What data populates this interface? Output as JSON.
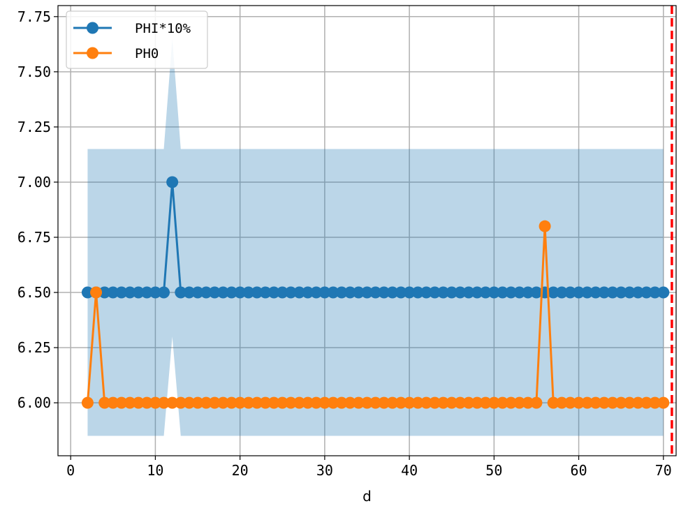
{
  "chart_data": {
    "type": "line",
    "title": "",
    "xlabel": "d",
    "ylabel": "",
    "xlim": [
      -1.5,
      71.5
    ],
    "ylim": [
      5.76,
      7.8
    ],
    "xticks": [
      0,
      10,
      20,
      30,
      40,
      50,
      60,
      70
    ],
    "yticks": [
      6.0,
      6.25,
      6.5,
      6.75,
      7.0,
      7.25,
      7.5,
      7.75
    ],
    "xtick_labels": [
      "0",
      "10",
      "20",
      "30",
      "40",
      "50",
      "60",
      "70"
    ],
    "ytick_labels": [
      "6.00",
      "6.25",
      "6.50",
      "6.75",
      "7.00",
      "7.25",
      "7.50",
      "7.75"
    ],
    "grid": true,
    "legend_position": "top-left",
    "vline": {
      "x": 71,
      "color": "#ff0000",
      "style": "dashed"
    },
    "band": {
      "color": "#1f77b4",
      "x": [
        2,
        11,
        12,
        13,
        70
      ],
      "upper": [
        7.15,
        7.15,
        7.65,
        7.15,
        7.15
      ],
      "lower": [
        5.85,
        5.85,
        6.3,
        5.85,
        5.85
      ]
    },
    "series": [
      {
        "name": "PHI*10%",
        "color": "#1f77b4",
        "x_start": 2,
        "values": [
          6.5,
          6.5,
          6.5,
          6.5,
          6.5,
          6.5,
          6.5,
          6.5,
          6.5,
          6.5,
          7.0,
          6.5,
          6.5,
          6.5,
          6.5,
          6.5,
          6.5,
          6.5,
          6.5,
          6.5,
          6.5,
          6.5,
          6.5,
          6.5,
          6.5,
          6.5,
          6.5,
          6.5,
          6.5,
          6.5,
          6.5,
          6.5,
          6.5,
          6.5,
          6.5,
          6.5,
          6.5,
          6.5,
          6.5,
          6.5,
          6.5,
          6.5,
          6.5,
          6.5,
          6.5,
          6.5,
          6.5,
          6.5,
          6.5,
          6.5,
          6.5,
          6.5,
          6.5,
          6.5,
          6.5,
          6.5,
          6.5,
          6.5,
          6.5,
          6.5,
          6.5,
          6.5,
          6.5,
          6.5,
          6.5,
          6.5,
          6.5,
          6.5,
          6.5
        ]
      },
      {
        "name": "PH0",
        "color": "#ff7f0e",
        "x_start": 2,
        "values": [
          6.0,
          6.5,
          6.0,
          6.0,
          6.0,
          6.0,
          6.0,
          6.0,
          6.0,
          6.0,
          6.0,
          6.0,
          6.0,
          6.0,
          6.0,
          6.0,
          6.0,
          6.0,
          6.0,
          6.0,
          6.0,
          6.0,
          6.0,
          6.0,
          6.0,
          6.0,
          6.0,
          6.0,
          6.0,
          6.0,
          6.0,
          6.0,
          6.0,
          6.0,
          6.0,
          6.0,
          6.0,
          6.0,
          6.0,
          6.0,
          6.0,
          6.0,
          6.0,
          6.0,
          6.0,
          6.0,
          6.0,
          6.0,
          6.0,
          6.0,
          6.0,
          6.0,
          6.0,
          6.0,
          6.8,
          6.0,
          6.0,
          6.0,
          6.0,
          6.0,
          6.0,
          6.0,
          6.0,
          6.0,
          6.0,
          6.0,
          6.0,
          6.0,
          6.0
        ]
      }
    ]
  }
}
